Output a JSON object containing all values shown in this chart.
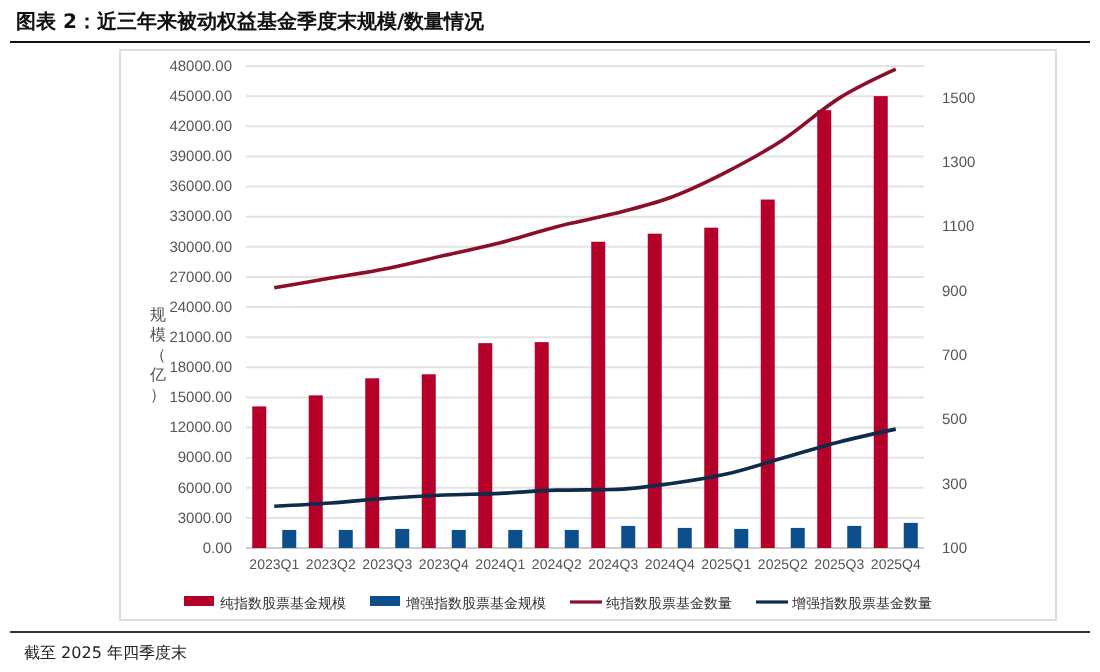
{
  "chart_data": {
    "type": "bar",
    "title": "图表 2：近三年来被动权益基金季度末规模/数量情况",
    "ylabel": "规模（亿）",
    "annotations": [
      "截至 2025 年四季度末"
    ],
    "categories": [
      "2023Q1",
      "2023Q2",
      "2023Q3",
      "2023Q4",
      "2024Q1",
      "2024Q2",
      "2024Q3",
      "2024Q4",
      "2025Q1",
      "2025Q2",
      "2025Q3",
      "2025Q4"
    ],
    "series": [
      {
        "name": "纯指数股票基金规模",
        "color": "#b5002a",
        "values": [
          14100,
          15200,
          16900,
          17300,
          20400,
          20500,
          30500,
          31300,
          31900,
          34700,
          43600,
          45000
        ]
      },
      {
        "name": "增强指数股票基金规模",
        "color": "#0c4f8c",
        "values": [
          1800,
          1800,
          1900,
          1800,
          1800,
          1800,
          2200,
          2000,
          1900,
          2000,
          2200,
          2500
        ]
      },
      {
        "name": "纯指数股票基金数量",
        "type": "line",
        "axis": "y2",
        "color": "#8b0e2a",
        "values": [
          910,
          940,
          970,
          1010,
          1050,
          1100,
          1140,
          1190,
          1270,
          1370,
          1500,
          1590
        ]
      },
      {
        "name": "增强指数股票基金数量",
        "type": "line",
        "axis": "y2",
        "color": "#0d2b4a",
        "values": [
          230,
          240,
          255,
          265,
          270,
          280,
          282,
          300,
          330,
          380,
          430,
          470
        ]
      }
    ],
    "ylim": [
      0,
      48000
    ],
    "yticks": [
      {
        "value": 0,
        "label": "0.00"
      },
      {
        "value": 3000,
        "label": "3000.00"
      },
      {
        "value": 6000,
        "label": "6000.00"
      },
      {
        "value": 9000,
        "label": "9000.00"
      },
      {
        "value": 12000,
        "label": "12000.00"
      },
      {
        "value": 15000,
        "label": "15000.00"
      },
      {
        "value": 18000,
        "label": "18000.00"
      },
      {
        "value": 21000,
        "label": "21000.00"
      },
      {
        "value": 24000,
        "label": "24000.00"
      },
      {
        "value": 27000,
        "label": "27000.00"
      },
      {
        "value": 30000,
        "label": "30000.00"
      },
      {
        "value": 33000,
        "label": "33000.00"
      },
      {
        "value": 36000,
        "label": "36000.00"
      },
      {
        "value": 39000,
        "label": "39000.00"
      },
      {
        "value": 42000,
        "label": "42000.00"
      },
      {
        "value": 45000,
        "label": "45000.00"
      },
      {
        "value": 48000,
        "label": "48000.00"
      }
    ],
    "y2lim": [
      100,
      1600
    ],
    "y2ticks": [
      100,
      300,
      500,
      700,
      900,
      1100,
      1300,
      1500
    ],
    "grid": "y",
    "legend": "bottom",
    "marker": "none",
    "line_style": "solid"
  }
}
